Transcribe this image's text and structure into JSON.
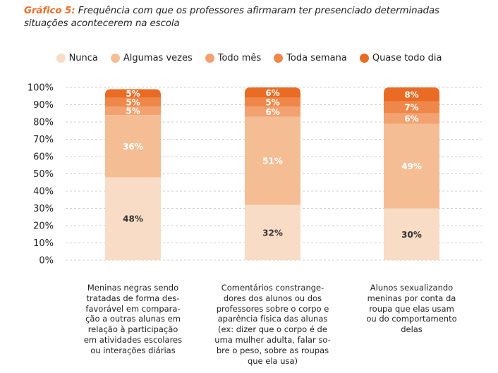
{
  "title": {
    "lead": "Gráfico 5:",
    "text": " Frequência com que os professores afirmaram ter presenciado determinadas situações acontecerem na escola"
  },
  "colors": {
    "accent": "#e8702a",
    "Nunca": "#f8dcc5",
    "Algumas vezes": "#f5bd94",
    "Todo mês": "#f2a271",
    "Toda semana": "#ee8749",
    "Quase todo dia": "#e96b24"
  },
  "chart_data": {
    "type": "bar",
    "stacked": true,
    "title": "Frequência com que os professores afirmaram ter presenciado determinadas situações acontecerem na escola",
    "xlabel": "",
    "ylabel": "",
    "ylim": [
      0,
      100
    ],
    "yticks": [
      "0%",
      "10%",
      "20%",
      "30%",
      "40%",
      "50%",
      "60%",
      "70%",
      "80%",
      "90%",
      "100%"
    ],
    "grid": true,
    "legend_position": "top",
    "categories": [
      "Meninas negras sendo tratadas de forma des-favorável em compara-ção a outras alunas em relação à participação em atividades escolares ou interações diárias",
      "Comentários constrange-dores dos alunos ou dos professores sobre o corpo e aparência física das alunas (ex: dizer que o corpo é de uma mulher adulta, falar so-bre o peso, sobre as roupas que ela usa)",
      "Alunos sexualizando meninas por conta da roupa que elas usam ou do comportamento delas"
    ],
    "category_lines": [
      [
        "Meninas negras sendo",
        "tratadas de forma des-",
        "favorável em compara-",
        "ção a outras alunas em",
        "relação à participação",
        "em atividades escolares",
        "ou interações diárias"
      ],
      [
        "Comentários constrange-",
        "dores dos alunos ou dos",
        "professores sobre o corpo e",
        "aparência física das alunas",
        "(ex: dizer que o corpo é de",
        "uma mulher adulta, falar so-",
        "bre o peso, sobre as roupas",
        "que ela usa)"
      ],
      [
        "Alunos sexualizando",
        "meninas por conta da",
        "roupa que elas usam",
        "ou do comportamento",
        "delas"
      ]
    ],
    "series": [
      {
        "name": "Nunca",
        "values": [
          48,
          32,
          30
        ],
        "labels": [
          "48%",
          "32%",
          "30%"
        ]
      },
      {
        "name": "Algumas vezes",
        "values": [
          36,
          51,
          49
        ],
        "labels": [
          "36%",
          "51%",
          "49%"
        ]
      },
      {
        "name": "Todo mês",
        "values": [
          5,
          6,
          6
        ],
        "labels": [
          "5%",
          "6%",
          "6%"
        ]
      },
      {
        "name": "Toda semana",
        "values": [
          5,
          5,
          7
        ],
        "labels": [
          "5%",
          "5%",
          "7%"
        ]
      },
      {
        "name": "Quase todo dia",
        "values": [
          5,
          6,
          8
        ],
        "labels": [
          "5%",
          "6%",
          "8%"
        ]
      }
    ]
  }
}
